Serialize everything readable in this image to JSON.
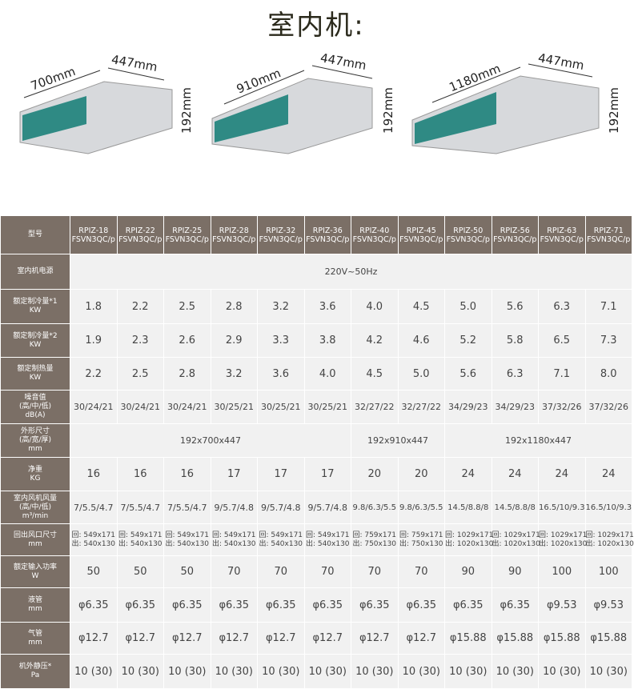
{
  "title": "室内机:",
  "images": [
    {
      "labels": [
        "700mm",
        "447mm",
        "192mm"
      ]
    },
    {
      "labels": [
        "910mm",
        "447mm",
        "192mm"
      ]
    },
    {
      "labels": [
        "1180mm",
        "447mm",
        "192mm"
      ]
    }
  ],
  "table": {
    "header": {
      "label": "型号",
      "models": [
        [
          "RPIZ-18",
          "FSVN3QC/p"
        ],
        [
          "RPIZ-22",
          "FSVN3QC/p"
        ],
        [
          "RPIZ-25",
          "FSVN3QC/p"
        ],
        [
          "RPIZ-28",
          "FSVN3QC/p"
        ],
        [
          "RPIZ-32",
          "FSVN3QC/p"
        ],
        [
          "RPIZ-36",
          "FSVN3QC/p"
        ],
        [
          "RPIZ-40",
          "FSVN3QC/p"
        ],
        [
          "RPIZ-45",
          "FSVN3QC/p"
        ],
        [
          "RPIZ-50",
          "FSVN3QC/p"
        ],
        [
          "RPIZ-56",
          "FSVN3QC/p"
        ],
        [
          "RPIZ-63",
          "FSVN3QC/p"
        ],
        [
          "RPIZ-71",
          "FSVN3QC/p"
        ]
      ]
    },
    "rows": [
      {
        "label": [
          "室内机电源"
        ],
        "cells": [
          "220V~50Hz"
        ]
      },
      {
        "label": [
          "额定制冷量*1",
          "KW"
        ],
        "cells": [
          "1.8",
          "2.2",
          "2.5",
          "2.8",
          "3.2",
          "3.6",
          "4.0",
          "4.5",
          "5.0",
          "5.6",
          "6.3",
          "7.1"
        ]
      },
      {
        "label": [
          "额定制冷量*2",
          "KW"
        ],
        "cells": [
          "1.9",
          "2.3",
          "2.6",
          "2.9",
          "3.3",
          "3.8",
          "4.2",
          "4.6",
          "5.2",
          "5.8",
          "6.5",
          "7.3"
        ]
      },
      {
        "label": [
          "额定制热量",
          "KW"
        ],
        "cells": [
          "2.2",
          "2.5",
          "2.8",
          "3.2",
          "3.6",
          "4.0",
          "4.5",
          "5.0",
          "5.6",
          "6.3",
          "7.1",
          "8.0"
        ]
      },
      {
        "label": [
          "噪音值",
          "(高/中/低)",
          "dB(A)"
        ],
        "cells": [
          "30/24/21",
          "30/24/21",
          "30/24/21",
          "30/25/21",
          "30/25/21",
          "30/25/21",
          "32/27/22",
          "32/27/22",
          "34/29/23",
          "34/29/23",
          "37/32/26",
          "37/32/26"
        ]
      },
      {
        "label": [
          "外形尺寸",
          "(高/宽/厚)",
          "mm"
        ],
        "cells": [
          "192x700x447",
          "192x910x447",
          "192x1180x447"
        ]
      },
      {
        "label": [
          "净重",
          "KG"
        ],
        "cells": [
          "16",
          "16",
          "16",
          "17",
          "17",
          "17",
          "20",
          "20",
          "24",
          "24",
          "24",
          "24"
        ]
      },
      {
        "label": [
          "室内风机风量",
          "(高/中/低)",
          "m³/min"
        ],
        "cells": [
          "7/5.5/4.7",
          "7/5.5/4.7",
          "7/5.5/4.7",
          "9/5.7/4.8",
          "9/5.7/4.8",
          "9/5.7/4.8",
          "9.8/6.3/5.5",
          "9.8/6.3/5.5",
          "14.5/8.8/8",
          "14.5/8.8/8",
          "16.5/10/9.3",
          "16.5/10/9.3"
        ]
      },
      {
        "label": [
          "回出风口尺寸",
          "mm"
        ],
        "cells": [
          [
            "回: 549x171",
            "出: 540x130"
          ],
          [
            "回: 549x171",
            "出: 540x130"
          ],
          [
            "回: 549x171",
            "出: 540x130"
          ],
          [
            "回: 549x171",
            "出: 540x130"
          ],
          [
            "回: 549x171",
            "出: 540x130"
          ],
          [
            "回: 549x171",
            "出: 540x130"
          ],
          [
            "回: 759x171",
            "出: 750x130"
          ],
          [
            "回: 759x171",
            "出: 750x130"
          ],
          [
            "回: 1029x171",
            "出: 1020x130"
          ],
          [
            "回: 1029x171",
            "出: 1020x130"
          ],
          [
            "回: 1029x171",
            "出: 1020x130"
          ],
          [
            "回: 1029x171",
            "出: 1020x130"
          ]
        ]
      },
      {
        "label": [
          "额定输入功率",
          "W"
        ],
        "cells": [
          "50",
          "50",
          "50",
          "70",
          "70",
          "70",
          "70",
          "70",
          "90",
          "90",
          "100",
          "100"
        ]
      },
      {
        "label": [
          "液管",
          "mm"
        ],
        "cells": [
          "φ6.35",
          "φ6.35",
          "φ6.35",
          "φ6.35",
          "φ6.35",
          "φ6.35",
          "φ6.35",
          "φ6.35",
          "φ6.35",
          "φ6.35",
          "φ9.53",
          "φ9.53"
        ]
      },
      {
        "label": [
          "气管",
          "mm"
        ],
        "cells": [
          "φ12.7",
          "φ12.7",
          "φ12.7",
          "φ12.7",
          "φ12.7",
          "φ12.7",
          "φ12.7",
          "φ12.7",
          "φ15.88",
          "φ15.88",
          "φ15.88",
          "φ15.88"
        ]
      },
      {
        "label": [
          "机外静压*",
          "Pa"
        ],
        "cells": [
          "10 (30)",
          "10 (30)",
          "10 (30)",
          "10 (30)",
          "10 (30)",
          "10 (30)",
          "10 (30)",
          "10 (30)",
          "10 (30)",
          "10 (30)",
          "10 (30)",
          "10 (30)"
        ]
      }
    ]
  }
}
